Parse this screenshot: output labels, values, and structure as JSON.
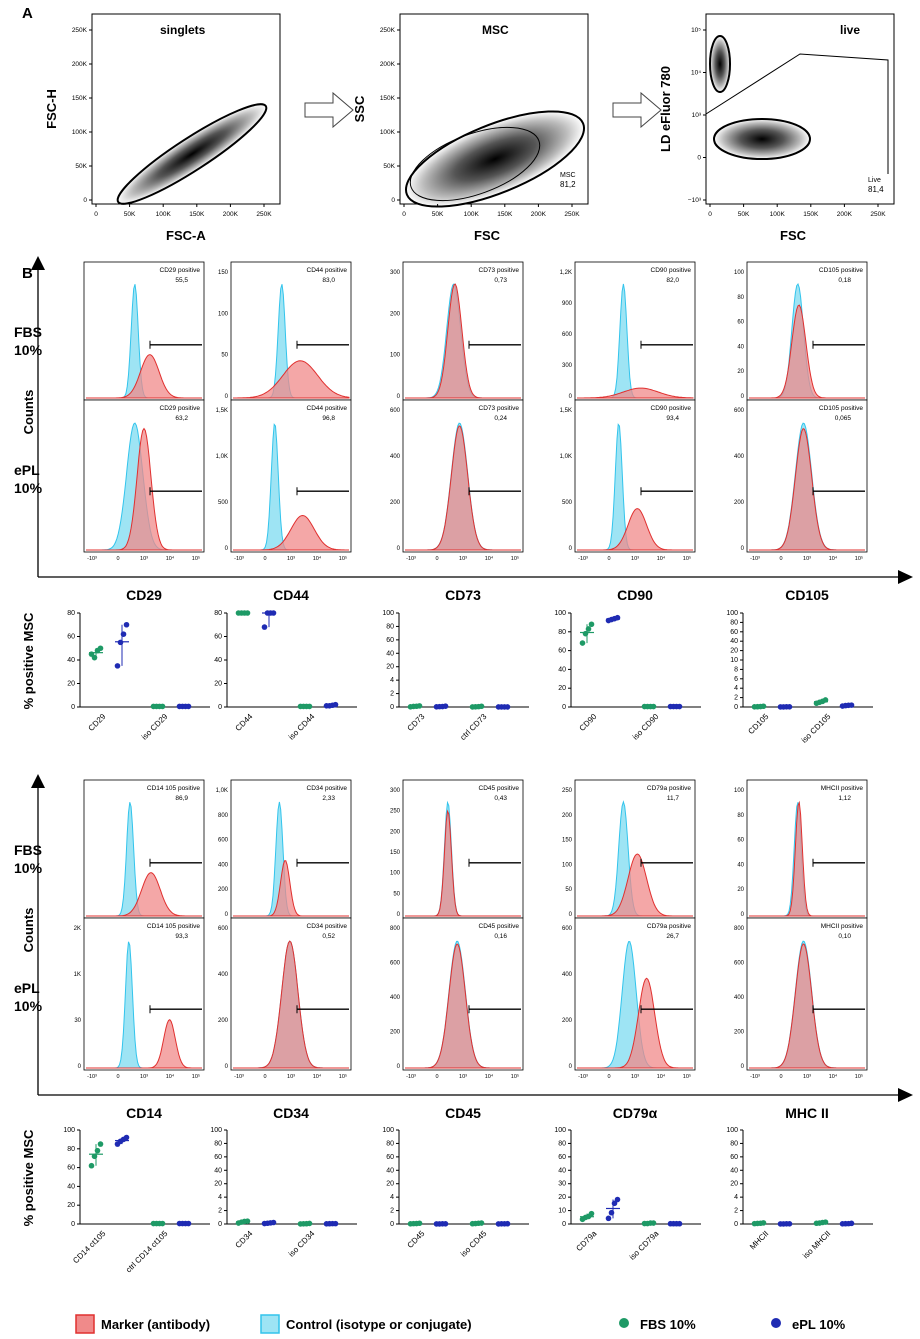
{
  "panel_labels": {
    "a": "A",
    "b": "B"
  },
  "row_labels": {
    "fbs": [
      "FBS",
      "10%"
    ],
    "epl": [
      "ePL",
      "10%"
    ],
    "counts": "Counts",
    "percent_axis": "% positive MSC"
  },
  "legend": {
    "marker": "Marker (antibody)",
    "control": "Control (isotype or conjugate)",
    "fbs": "FBS 10%",
    "epl": "ePL 10%"
  },
  "colors": {
    "marker_fill": "#f08a8a",
    "marker_line": "#e0302f",
    "control_fill": "#9ee4f4",
    "control_line": "#32c4ec",
    "overlap_fill": "#8d96b4",
    "fbs_dot": "#1e9a66",
    "epl_dot": "#1f2bb3"
  },
  "chart_data": [
    {
      "type": "scatter",
      "panel": "A",
      "title": "singlets",
      "xlabel": "FSC-A",
      "ylabel": "FSC-H",
      "xticks": [
        "0",
        "50K",
        "100K",
        "150K",
        "200K",
        "250K"
      ],
      "yticks": [
        "0",
        "50K",
        "100K",
        "150K",
        "200K",
        "250K"
      ]
    },
    {
      "type": "scatter",
      "panel": "A",
      "title": "MSC",
      "xlabel": "FSC",
      "ylabel": "SSC",
      "xticks": [
        "0",
        "50K",
        "100K",
        "150K",
        "200K",
        "250K"
      ],
      "yticks": [
        "0",
        "50K",
        "100K",
        "150K",
        "200K",
        "250K"
      ],
      "gate": {
        "label": "MSC",
        "value": "81,2"
      }
    },
    {
      "type": "scatter",
      "panel": "A",
      "title": "live",
      "xlabel": "FSC",
      "ylabel": "LD eFluor 780",
      "xticks": [
        "0",
        "50K",
        "100K",
        "150K",
        "200K",
        "250K"
      ],
      "yticks": [
        "−10³",
        "0",
        "10³",
        "10⁴",
        "10⁵"
      ],
      "gate": {
        "label": "Live",
        "value": "81,4"
      }
    },
    {
      "type": "histogram",
      "panel": "B",
      "markers": [
        "CD29",
        "CD44",
        "CD73",
        "CD90",
        "CD105"
      ],
      "xticks": [
        "-10³",
        "0",
        "10³",
        "10⁴",
        "10⁵"
      ],
      "fbs": [
        {
          "title": "CD29 positive",
          "value": "55,5",
          "yticks": []
        },
        {
          "title": "CD44 positive",
          "value": "83,0",
          "yticks": [
            "150",
            "100",
            "50",
            "0"
          ]
        },
        {
          "title": "CD73 positive",
          "value": "0,73",
          "yticks": [
            "300",
            "200",
            "100",
            "0"
          ]
        },
        {
          "title": "CD90 positive",
          "value": "82,0",
          "yticks": [
            "1,2K",
            "900",
            "600",
            "300",
            "0"
          ]
        },
        {
          "title": "CD105 positive",
          "value": "0,18",
          "yticks": [
            "100",
            "80",
            "60",
            "40",
            "20",
            "0"
          ]
        }
      ],
      "epl": [
        {
          "title": "CD29 positive",
          "value": "63,2",
          "yticks": []
        },
        {
          "title": "CD44 positive",
          "value": "96,8",
          "yticks": [
            "1,5K",
            "1,0K",
            "500",
            "0"
          ]
        },
        {
          "title": "CD73 positive",
          "value": "0,24",
          "yticks": [
            "600",
            "400",
            "200",
            "0"
          ]
        },
        {
          "title": "CD90 positive",
          "value": "93,4",
          "yticks": [
            "1,5K",
            "1,0K",
            "500",
            "0"
          ]
        },
        {
          "title": "CD105 positive",
          "value": "0,065",
          "yticks": [
            "600",
            "400",
            "200",
            "0"
          ]
        }
      ]
    },
    {
      "type": "scatter",
      "panel": "B",
      "ylabel": "% positive MSC",
      "groups": [
        {
          "categories": [
            "CD29",
            "iso CD29"
          ],
          "yticks": [
            "0",
            "20",
            "40",
            "60",
            "80"
          ],
          "fbs": [
            [
              45,
              42,
              48,
              50
            ],
            [
              0.5,
              0.5,
              0.5,
              0.5
            ]
          ],
          "epl": [
            [
              35,
              55,
              62,
              70
            ],
            [
              0.5,
              0.5,
              0.5,
              0.5
            ]
          ]
        },
        {
          "categories": [
            "CD44",
            "iso CD44"
          ],
          "yticks": [
            "0",
            "20",
            "40",
            "60",
            "80"
          ],
          "fbs": [
            [
              85,
              88,
              90,
              92
            ],
            [
              0.5,
              0.5,
              0.5,
              0.5
            ]
          ],
          "epl": [
            [
              68,
              88,
              92,
              95
            ],
            [
              1,
              1,
              1.5,
              2
            ]
          ]
        },
        {
          "categories": [
            "CD73",
            "ctrl CD73"
          ],
          "yticks": [
            "0",
            "2",
            "4",
            "20",
            "40",
            "60",
            "80",
            "100"
          ],
          "fbs": [
            [
              0.2,
              0.6,
              0.8,
              1.2
            ],
            [
              0.1,
              0.2,
              0.4,
              0.8
            ]
          ],
          "epl": [
            [
              0.2,
              0.4,
              0.5,
              0.9
            ],
            [
              0.05,
              0.05,
              0.05,
              0.05
            ]
          ]
        },
        {
          "categories": [
            "CD90",
            "iso CD90"
          ],
          "yticks": [
            "0",
            "20",
            "40",
            "60",
            "80",
            "100"
          ],
          "fbs": [
            [
              68,
              78,
              83,
              88
            ],
            [
              0.5,
              0.5,
              0.5,
              0.5
            ]
          ],
          "epl": [
            [
              92,
              93,
              94,
              95
            ],
            [
              0.5,
              0.5,
              0.5,
              0.5
            ]
          ]
        },
        {
          "categories": [
            "CD105",
            "iso CD105"
          ],
          "yticks": [
            "0",
            "2",
            "4",
            "6",
            "8",
            "10",
            "20",
            "40",
            "60",
            "80",
            "100"
          ],
          "fbs": [
            [
              0.2,
              0.3,
              0.5,
              0.8
            ],
            [
              4,
              5,
              6,
              7.5
            ]
          ],
          "epl": [
            [
              0.1,
              0.1,
              0.2,
              0.2
            ],
            [
              1,
              1.5,
              1.8,
              2
            ]
          ]
        }
      ]
    },
    {
      "type": "histogram",
      "panel": "B",
      "markers": [
        "CD14",
        "CD34",
        "CD45",
        "CD79α",
        "MHC II"
      ],
      "xticks": [
        "-10³",
        "0",
        "10³",
        "10⁴",
        "10⁵"
      ],
      "fbs": [
        {
          "title": "CD14 105 positive",
          "value": "86,9",
          "yticks": []
        },
        {
          "title": "CD34 positive",
          "value": "2,33",
          "yticks": [
            "1,0K",
            "800",
            "600",
            "400",
            "200",
            "0"
          ]
        },
        {
          "title": "CD45 positive",
          "value": "0,43",
          "yticks": [
            "300",
            "250",
            "200",
            "150",
            "100",
            "50",
            "0"
          ]
        },
        {
          "title": "CD79a positive",
          "value": "11,7",
          "yticks": [
            "250",
            "200",
            "150",
            "100",
            "50",
            "0"
          ]
        },
        {
          "title": "MHCII positive",
          "value": "1,12",
          "yticks": [
            "100",
            "80",
            "60",
            "40",
            "20",
            "0"
          ]
        }
      ],
      "epl": [
        {
          "title": "CD14 105 positive",
          "value": "93,3",
          "yticks": [
            "2K",
            "1K",
            "30",
            "0"
          ]
        },
        {
          "title": "CD34 positive",
          "value": "0,52",
          "yticks": [
            "600",
            "400",
            "200",
            "0"
          ]
        },
        {
          "title": "CD45 positive",
          "value": "0,16",
          "yticks": [
            "800",
            "600",
            "400",
            "200",
            "0"
          ]
        },
        {
          "title": "CD79a positive",
          "value": "26,7",
          "yticks": [
            "600",
            "400",
            "200",
            "0"
          ]
        },
        {
          "title": "MHCII positive",
          "value": "0,10",
          "yticks": [
            "800",
            "600",
            "400",
            "200",
            "0"
          ]
        }
      ]
    },
    {
      "type": "scatter",
      "panel": "B",
      "ylabel": "% positive MSC",
      "groups": [
        {
          "categories": [
            "CD14 ct105",
            "ctrl CD14 ct105"
          ],
          "yticks": [
            "0",
            "20",
            "40",
            "60",
            "80",
            "100"
          ],
          "fbs": [
            [
              62,
              72,
              78,
              85
            ],
            [
              0.5,
              0.5,
              0.5,
              0.5
            ]
          ],
          "epl": [
            [
              85,
              88,
              90,
              92
            ],
            [
              0.5,
              0.5,
              0.5,
              0.5
            ]
          ]
        },
        {
          "categories": [
            "CD34",
            "iso CD34"
          ],
          "yticks": [
            "0",
            "2",
            "4",
            "20",
            "40",
            "60",
            "80",
            "100"
          ],
          "fbs": [
            [
              1,
              2,
              2.8,
              3
            ],
            [
              0.1,
              0.2,
              0.3,
              0.6
            ]
          ],
          "epl": [
            [
              0.5,
              0.8,
              1.2,
              1.6
            ],
            [
              0.2,
              0.3,
              0.4,
              0.4
            ]
          ]
        },
        {
          "categories": [
            "CD45",
            "iso CD45"
          ],
          "yticks": [
            "0",
            "2",
            "4",
            "20",
            "40",
            "60",
            "80",
            "100"
          ],
          "fbs": [
            [
              0.2,
              0.4,
              0.5,
              0.8
            ],
            [
              0.3,
              0.5,
              0.8,
              1
            ]
          ],
          "epl": [
            [
              0.1,
              0.1,
              0.2,
              0.2
            ],
            [
              0.1,
              0.2,
              0.2,
              0.3
            ]
          ]
        },
        {
          "categories": [
            "CD79a",
            "iso CD79a"
          ],
          "yticks": [
            "0",
            "10",
            "20",
            "30",
            "40",
            "60",
            "80",
            "100"
          ],
          "fbs": [
            [
              5,
              7,
              8,
              11
            ],
            [
              0.5,
              0.5,
              1,
              1
            ]
          ],
          "epl": [
            [
              6,
              12,
              22,
              26
            ],
            [
              0.3,
              0.3,
              0.3,
              0.3
            ]
          ]
        },
        {
          "categories": [
            "MHCII",
            "iso MHCII"
          ],
          "yticks": [
            "0",
            "2",
            "4",
            "20",
            "40",
            "60",
            "80",
            "100"
          ],
          "fbs": [
            [
              0.4,
              0.6,
              0.8,
              1.2
            ],
            [
              0.8,
              1,
              1.6,
              2
            ]
          ],
          "epl": [
            [
              0.1,
              0.1,
              0.2,
              0.2
            ],
            [
              0.2,
              0.3,
              0.4,
              0.7
            ]
          ]
        }
      ]
    }
  ]
}
